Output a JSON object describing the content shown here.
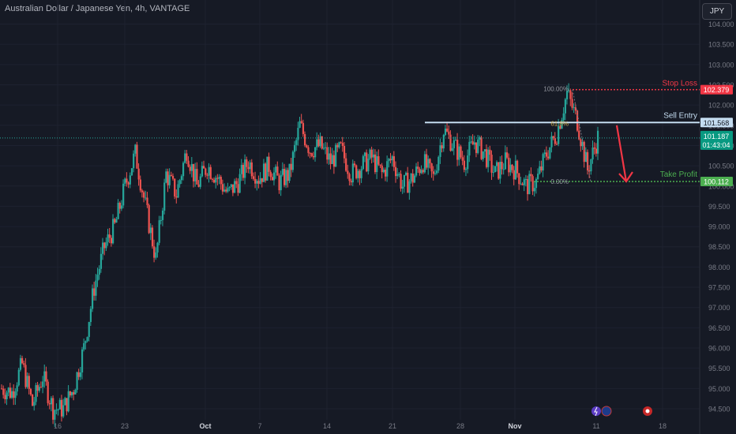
{
  "header": {
    "title": "Australian Dollar / Japanese Yen, 4h, VANTAGE",
    "currency_button": "JPY"
  },
  "colors": {
    "background": "#161a25",
    "up": "#26a69a",
    "down": "#ef5350",
    "stop": "#f23645",
    "entry": "#c4dcf0",
    "target": "#4caf50",
    "grid": "#1e2230"
  },
  "chart_data": {
    "type": "candlestick",
    "title": "Australian Dollar / Japanese Yen, 4h, VANTAGE",
    "ylim": [
      94.3,
      104.5
    ],
    "y_ticks": [
      "104.000",
      "103.500",
      "103.000",
      "102.500",
      "102.000",
      "101.500",
      "101.000",
      "100.500",
      "100.000",
      "99.500",
      "99.000",
      "98.500",
      "98.000",
      "97.500",
      "97.000",
      "96.500",
      "96.000",
      "95.500",
      "95.000",
      "94.500"
    ],
    "x_ticks": [
      "16",
      "23",
      "Oct",
      "7",
      "14",
      "21",
      "28",
      "Nov",
      "11",
      "18"
    ],
    "x_tick_bold": [
      "Oct",
      "Nov"
    ],
    "close_anchors": [
      95.0,
      94.9,
      95.6,
      94.6,
      95.3,
      94.5,
      94.5,
      95.0,
      96.0,
      97.5,
      98.5,
      99.0,
      100.0,
      100.8,
      99.5,
      98.2,
      100.3,
      99.8,
      100.9,
      100.0,
      100.5,
      100.2,
      99.8,
      100.1,
      100.6,
      100.2,
      100.5,
      100.1,
      100.3,
      101.5,
      100.9,
      101.0,
      100.6,
      100.9,
      100.3,
      100.5,
      100.7,
      100.3,
      100.7,
      100.0,
      100.2,
      100.6,
      100.2,
      101.4,
      101.0,
      100.6,
      101.1,
      100.8,
      100.3,
      100.6,
      100.4,
      100.0,
      100.1,
      100.8,
      101.3,
      102.3,
      101.6,
      100.4,
      101.2
    ],
    "levels": {
      "stop_loss": {
        "label": "Stop Loss",
        "price": "102.379"
      },
      "sell_entry": {
        "label": "Sell Entry",
        "price": "101.568"
      },
      "take_profit": {
        "label": "Take Profit",
        "price": "100.112"
      },
      "current": {
        "price": "101.187",
        "countdown": "01:43:04"
      }
    },
    "fib_labels": {
      "top": "100.00%",
      "mid": "61.8%",
      "bottom": "0.00%"
    },
    "projection": {
      "from": 101.5,
      "to": 100.112
    }
  }
}
